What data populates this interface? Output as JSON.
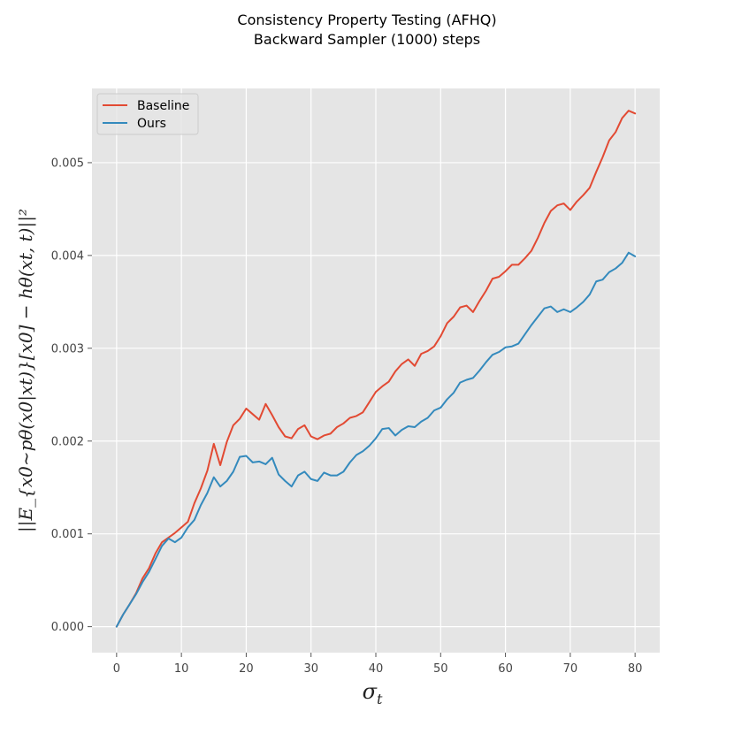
{
  "chart_data": {
    "type": "line",
    "title": "Consistency Property Testing (AFHQ)",
    "subtitle": "Backward Sampler (1000) steps",
    "xlabel": "σ_t",
    "ylabel": "||E_{x0~pθ(x0|xt)}[x0] − hθ(xt, t)||²",
    "xlim": [
      -3.8,
      83.8
    ],
    "ylim": [
      -0.00028,
      0.0058
    ],
    "x_ticks": [
      0,
      10,
      20,
      30,
      40,
      50,
      60,
      70,
      80
    ],
    "y_ticks": [
      0.0,
      0.001,
      0.002,
      0.003,
      0.004,
      0.005
    ],
    "x_tick_labels": [
      "0",
      "10",
      "20",
      "30",
      "40",
      "50",
      "60",
      "70",
      "80"
    ],
    "y_tick_labels": [
      "0.000",
      "0.001",
      "0.002",
      "0.003",
      "0.004",
      "0.005"
    ],
    "grid": true,
    "legend_position": "upper-left",
    "series": [
      {
        "name": "Baseline",
        "color": "#E24A33",
        "x": [
          0,
          1,
          2,
          3,
          4,
          5,
          6,
          7,
          8,
          9,
          10,
          11,
          12,
          13,
          14,
          15,
          16,
          17,
          18,
          19,
          20,
          21,
          22,
          23,
          24,
          25,
          26,
          27,
          28,
          29,
          30,
          31,
          32,
          33,
          34,
          35,
          36,
          37,
          38,
          39,
          40,
          41,
          42,
          43,
          44,
          45,
          46,
          47,
          48,
          49,
          50,
          51,
          52,
          53,
          54,
          55,
          56,
          57,
          58,
          59,
          60,
          61,
          62,
          63,
          64,
          65,
          66,
          67,
          68,
          69,
          70,
          71,
          72,
          73,
          74,
          75,
          76,
          77,
          78,
          79,
          80
        ],
        "values": [
          0.0,
          0.00013,
          0.00024,
          0.00036,
          0.00052,
          0.00063,
          0.00079,
          0.00091,
          0.00096,
          0.00101,
          0.00107,
          0.00113,
          0.00133,
          0.00149,
          0.00168,
          0.00197,
          0.00174,
          0.00199,
          0.00217,
          0.00224,
          0.00235,
          0.00229,
          0.00223,
          0.0024,
          0.00228,
          0.00215,
          0.00205,
          0.00203,
          0.00213,
          0.00217,
          0.00205,
          0.00202,
          0.00206,
          0.00208,
          0.00215,
          0.00219,
          0.00225,
          0.00227,
          0.00231,
          0.00242,
          0.00253,
          0.00259,
          0.00264,
          0.00275,
          0.00283,
          0.00288,
          0.00281,
          0.00294,
          0.00297,
          0.00302,
          0.00313,
          0.00327,
          0.00334,
          0.00344,
          0.00346,
          0.00339,
          0.00351,
          0.00362,
          0.00375,
          0.00377,
          0.00383,
          0.0039,
          0.0039,
          0.00397,
          0.00405,
          0.00419,
          0.00435,
          0.00448,
          0.00454,
          0.00456,
          0.00449,
          0.00458,
          0.00465,
          0.00473,
          0.0049,
          0.00506,
          0.00524,
          0.00533,
          0.00548,
          0.00556,
          0.00553
        ]
      },
      {
        "name": "Ours",
        "color": "#348ABD",
        "x": [
          0,
          1,
          2,
          3,
          4,
          5,
          6,
          7,
          8,
          9,
          10,
          11,
          12,
          13,
          14,
          15,
          16,
          17,
          18,
          19,
          20,
          21,
          22,
          23,
          24,
          25,
          26,
          27,
          28,
          29,
          30,
          31,
          32,
          33,
          34,
          35,
          36,
          37,
          38,
          39,
          40,
          41,
          42,
          43,
          44,
          45,
          46,
          47,
          48,
          49,
          50,
          51,
          52,
          53,
          54,
          55,
          56,
          57,
          58,
          59,
          60,
          61,
          62,
          63,
          64,
          65,
          66,
          67,
          68,
          69,
          70,
          71,
          72,
          73,
          74,
          75,
          76,
          77,
          78,
          79,
          80
        ],
        "values": [
          0.0,
          0.00013,
          0.00024,
          0.00035,
          0.00048,
          0.00059,
          0.00073,
          0.00087,
          0.00095,
          0.00091,
          0.00096,
          0.00107,
          0.00115,
          0.00131,
          0.00144,
          0.00161,
          0.00151,
          0.00157,
          0.00167,
          0.00183,
          0.00184,
          0.00177,
          0.00178,
          0.00175,
          0.00182,
          0.00164,
          0.00157,
          0.00151,
          0.00163,
          0.00167,
          0.00159,
          0.00157,
          0.00166,
          0.00163,
          0.00163,
          0.00167,
          0.00177,
          0.00185,
          0.00189,
          0.00195,
          0.00203,
          0.00213,
          0.00214,
          0.00206,
          0.00212,
          0.00216,
          0.00215,
          0.00221,
          0.00225,
          0.00233,
          0.00236,
          0.00245,
          0.00252,
          0.00263,
          0.00266,
          0.00268,
          0.00276,
          0.00285,
          0.00293,
          0.00296,
          0.00301,
          0.00302,
          0.00305,
          0.00315,
          0.00325,
          0.00334,
          0.00343,
          0.00345,
          0.00339,
          0.00342,
          0.00339,
          0.00344,
          0.0035,
          0.00358,
          0.00372,
          0.00374,
          0.00382,
          0.00386,
          0.00392,
          0.00403,
          0.00399
        ]
      }
    ]
  }
}
